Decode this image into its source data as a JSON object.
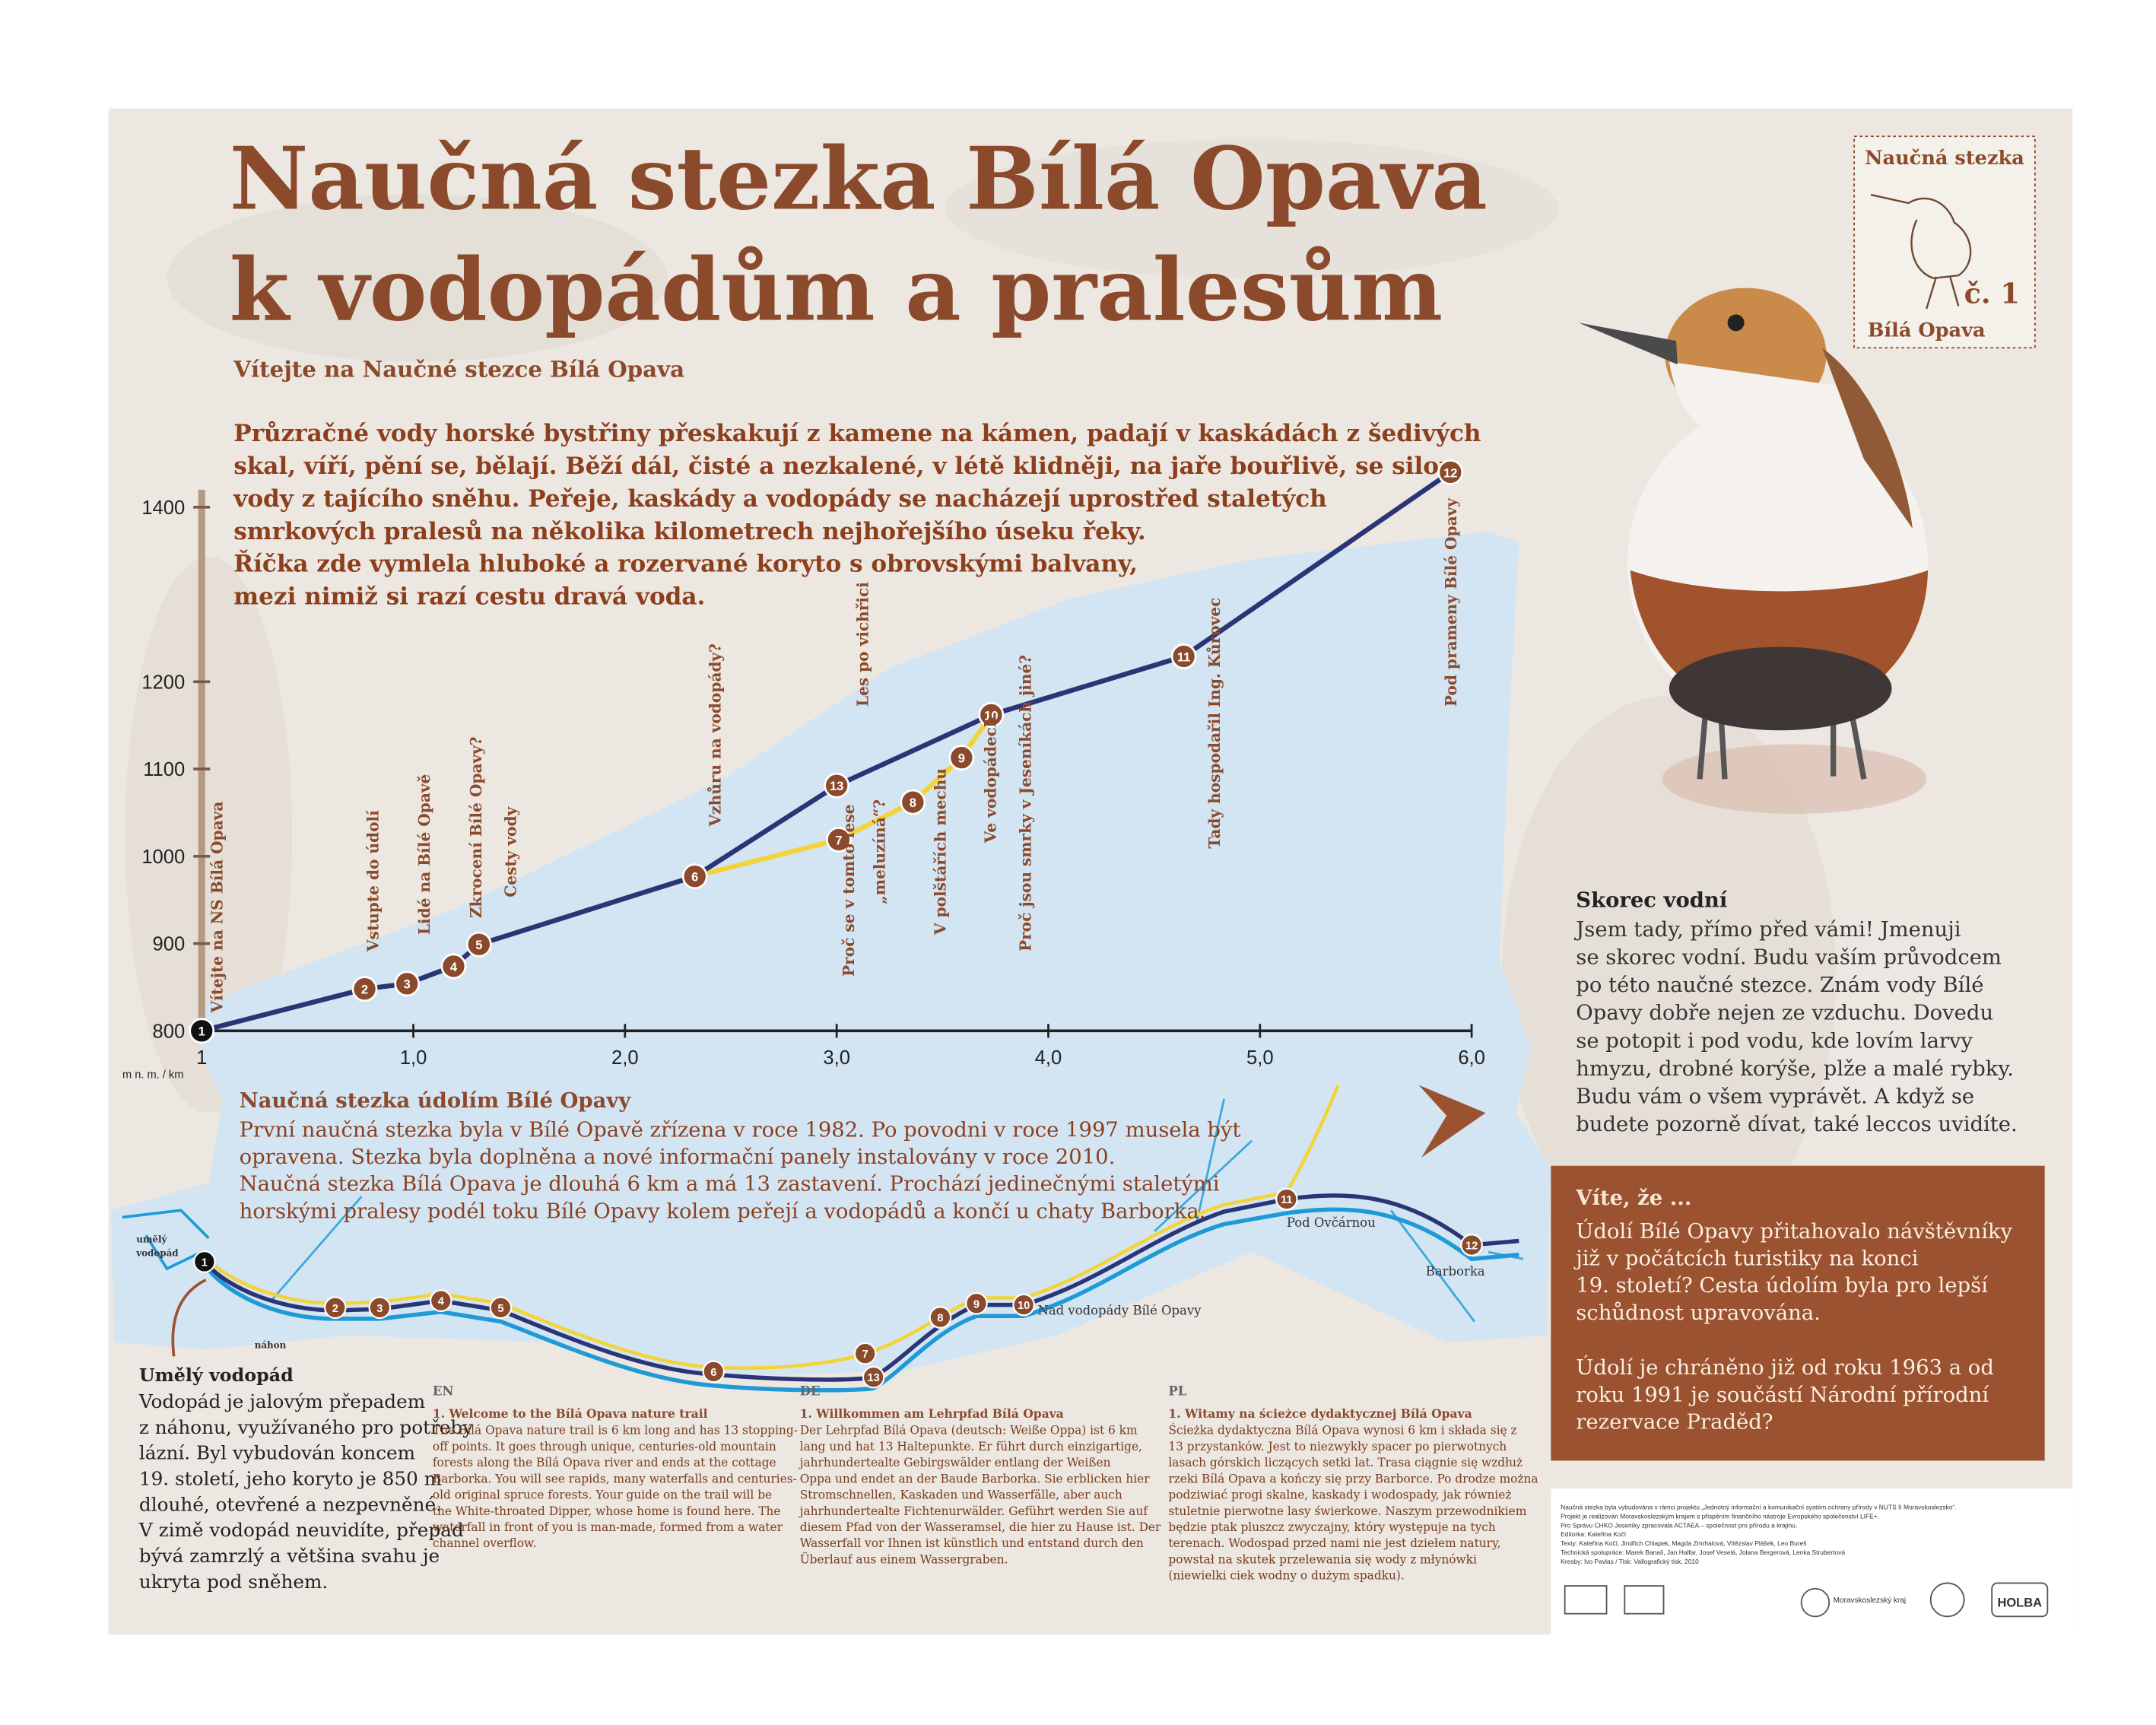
{
  "header": {
    "title_lines": [
      "Naučná stezka Bílá Opava",
      "k vodopádům a pralesům"
    ],
    "subtitle": "Vítejte na Naučné stezce Bílá Opava"
  },
  "intro": {
    "lines": [
      "Průzračné vody horské bystřiny přeskakují z kamene na kámen, padají v kaskádách z šedivých",
      "skal, víří, pění se, bělají. Běží dál, čisté a nezkalené, v létě klidněji, na jaře bouřlivě, se silou",
      "vody z tajícího sněhu. Peřeje, kaskády a vodopády se nacházejí uprostřed staletých",
      "smrkových pralesů na několika kilometrech nejhořejšího úseku řeky.",
      "Říčka zde vymlela hluboké a rozervané koryto s obrovskými balvany,",
      "mezi nimiž si razí cestu dravá voda."
    ]
  },
  "stamp": {
    "top": "Naučná stezka",
    "number": "č. 1",
    "bottom": "Bílá Opava"
  },
  "chart_data": {
    "type": "line",
    "x_origin_label": "1",
    "axis_unit": "m n. m. / km",
    "xlim": [
      0,
      6
    ],
    "ylim": [
      800,
      1420
    ],
    "xticks": [
      {
        "value": 1,
        "label": "1,0"
      },
      {
        "value": 2,
        "label": "2,0"
      },
      {
        "value": 3,
        "label": "3,0"
      },
      {
        "value": 4,
        "label": "4,0"
      },
      {
        "value": 5,
        "label": "5,0"
      },
      {
        "value": 6,
        "label": "6,0"
      }
    ],
    "yticks": [
      800,
      900,
      1000,
      1100,
      1200,
      1400
    ],
    "series": [
      {
        "color": "#f2d43a",
        "x": [
          0,
          0.77,
          0.97,
          1.19,
          1.31,
          2.33,
          3.01,
          3.36,
          3.59,
          3.73,
          4.64
        ],
        "values": [
          800,
          848,
          854,
          874,
          899,
          977,
          1019,
          1062,
          1113,
          1162,
          1229
        ]
      },
      {
        "color": "#2a3476",
        "x": [
          0,
          0.77,
          0.97,
          1.19,
          1.31,
          2.33,
          3.0,
          3.73,
          4.64,
          5.9
        ],
        "values": [
          800,
          848,
          854,
          874,
          899,
          977,
          1081,
          1162,
          1229,
          1440
        ]
      }
    ],
    "stops": {
      "labels": [
        "1",
        "2",
        "3",
        "4",
        "5",
        "6",
        "7",
        "8",
        "9",
        "10",
        "11",
        "12",
        "13"
      ],
      "x": [
        0,
        0.77,
        0.97,
        1.19,
        1.31,
        2.33,
        3.01,
        3.36,
        3.59,
        3.73,
        4.64,
        5.9,
        3.0
      ],
      "values": [
        800,
        848,
        854,
        874,
        899,
        977,
        1019,
        1062,
        1113,
        1162,
        1229,
        1440,
        1081
      ]
    },
    "annotations": [
      "Vítejte na NS Bílá Opava",
      "Vstupte do údolí",
      "Lidé na Bílé Opavě",
      "Zkrocení Bílé Opavy?",
      "Cesty vody",
      "Vzhůru na vodopády?",
      "Les po vichřici",
      "Proč se v tomto lese",
      "„meluzíná“?",
      "V polštářích mechu",
      "Ve vodopádech",
      "Proč jsou smrky v Jeseníkách jiné?",
      "Tady hospodařil Ing. Kůrovec",
      "Pod prameny Bílé Opavy"
    ]
  },
  "dipper": {
    "heading": "Skorec vodní",
    "lines": [
      "Jsem tady, přímo před vámi! Jmenuji",
      "se skorec vodní. Budu vaším průvodcem",
      "po této naučné stezce. Znám vody Bílé",
      "Opavy dobře nejen ze vzduchu. Dovedu",
      "se potopit i pod vodu, kde lovím larvy",
      "hmyzu, drobné korýše, plže a malé rybky.",
      "Budu vám o všem vyprávět. A když se",
      "budete pozorně dívat, také leccos uvidíte."
    ]
  },
  "did_you_know": {
    "heading": "Víte, že ...",
    "paragraphs": [
      [
        "Údolí Bílé Opavy přitahovalo návštěvníky",
        "již v počátcích turistiky na konci",
        "19. století? Cesta údolím byla pro lepší",
        "schůdnost upravována."
      ],
      [
        "Údolí je chráněno již od roku 1963 a od",
        "roku 1991 je součástí Národní přírodní",
        "rezervace Praděd?"
      ]
    ]
  },
  "map_section": {
    "heading": "Naučná stezka údolím Bílé Opavy",
    "lines": [
      "První naučná stezka byla v Bílé Opavě zřízena v roce 1982. Po povodni v roce 1997 musela být",
      "opravena. Stezka byla doplněna a nové informační panely instalovány v roce 2010.",
      "Naučná stezka Bílá Opava je dlouhá 6 km a má 13 zastavení. Prochází jedinečnými staletými",
      "horskými pralesy podél toku Bílé Opavy kolem peřejí a vodopádů a končí u chaty Barborka."
    ]
  },
  "map": {
    "stops": [
      "1",
      "2",
      "3",
      "4",
      "5",
      "6",
      "7",
      "13",
      "8",
      "9",
      "10",
      "11",
      "12"
    ],
    "labels": [
      "umělý",
      "vodopád",
      "náhon",
      "Pod Ovčárnou",
      "Nad vodopády Bílé Opavy",
      "Barborka"
    ]
  },
  "waterfall_note": {
    "heading": "Umělý vodopád",
    "lines": [
      "Vodopád je jalovým přepadem",
      "z náhonu, využívaného pro potřeby",
      "lázní. Byl vybudován koncem",
      "19. století, jeho koryto je 850 m",
      "dlouhé, otevřené a nezpevněné.",
      "V zimě vodopád neuvidíte, přepad",
      "bývá zamrzlý a většina svahu je",
      "ukryta pod sněhem."
    ]
  },
  "translations": [
    {
      "lang": "EN",
      "heading": "1. Welcome to the Bílá Opava nature trail",
      "lines": [
        "The Bílá Opava nature trail is 6 km long and has 13 stopping-",
        "off points. It goes through unique, centuries-old mountain",
        "forests along the Bílá Opava river and ends at the cottage",
        "Barborka. You will see rapids, many waterfalls and centuries-",
        "old original spruce forests. Your guide on the trail will be",
        "the White-throated Dipper, whose home is found here. The",
        "waterfall in front of you is man-made, formed from a water",
        "channel overflow."
      ]
    },
    {
      "lang": "DE",
      "heading": "1. Willkommen am Lehrpfad Bílá Opava",
      "lines": [
        "Der Lehrpfad Bílá Opava (deutsch: Weiße Oppa) ist 6 km",
        "lang und hat 13 Haltepunkte. Er führt durch einzigartige,",
        "jahrhundertealte Gebirgswälder entlang der Weißen",
        "Oppa und endet an der Baude Barborka. Sie erblicken hier",
        "Stromschnellen, Kaskaden und Wasserfälle, aber auch",
        "jahrhundertealte Fichtenurwälder. Geführt werden Sie auf",
        "diesem Pfad von der Wasseramsel, die hier zu Hause ist. Der",
        "Wasserfall vor Ihnen ist künstlich und entstand durch den",
        "Überlauf aus einem Wassergraben."
      ]
    },
    {
      "lang": "PL",
      "heading": "1. Witamy na ścieżce dydaktycznej Bílá Opava",
      "lines": [
        "Ścieżka dydaktyczna Bílá Opava wynosi 6 km i składa się z",
        "13 przystanków. Jest to niezwykły spacer po pierwotnych",
        "lasach górskich liczących setki lat. Trasa ciągnie się wzdłuż",
        "rzeki Bílá Opava a kończy się przy Barborce. Po drodze można",
        "podziwiać progi skalne, kaskady i wodospady, jak również",
        "stuletnie pierwotne lasy świerkowe. Naszym przewodnikiem",
        "będzie ptak pluszcz zwyczajny, który występuje na tych",
        "terenach. Wodospad przed nami nie jest dziełem natury,",
        "powstał na skutek przelewania się wody z młynówki",
        "(niewielki ciek wodny o dużym spadku)."
      ]
    }
  ],
  "footer": {
    "lines": [
      "Naučná stezka byla vybudována v rámci projektu „Jednotný informační a komunikační systém ochrany přírody v NUTS II Moravskoslezsko“.",
      "Projekt je realizován Moravskoslezským krajem s přispěním finančního nástroje Evropského společenství LIFE+.",
      "Pro Správu CHKO Jeseníky zpracovala ACTAEA – společnost pro přírodu a krajinu.",
      "Editorka: Kateřina Kočí",
      "Texty: Kateřina Kočí, Jindřich Chlapek, Magda Zmrhalová, Vítězslav Plášek, Leo Bureš",
      "Technická spolupráce: Marek Banaš, Jan Halfar, Josef Veselá, Jolana Bergerová, Lenka Strubertová",
      "Kresby: Ivo Pavlas / Tisk: Vallografický tisk, 2010"
    ],
    "logos": [
      "Moravskoslezský kraj",
      "HOLBA"
    ]
  }
}
